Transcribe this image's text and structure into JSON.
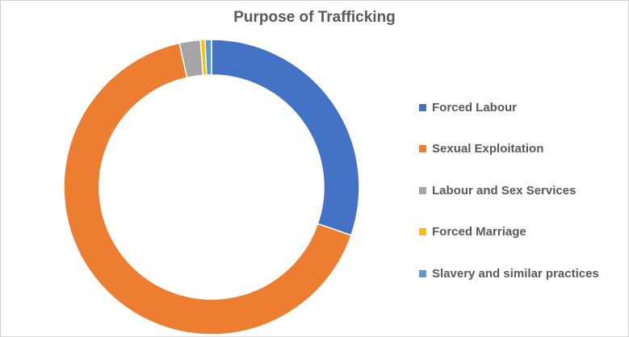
{
  "chart_data": {
    "type": "pie",
    "variant": "doughnut",
    "title": "Purpose of Trafficking",
    "legend_position": "right",
    "series": [
      {
        "name": "Forced Labour",
        "value": 30.3,
        "color": "#4472C4"
      },
      {
        "name": "Sexual Exploitation",
        "value": 66.2,
        "color": "#ED7D31"
      },
      {
        "name": "Labour and Sex Services",
        "value": 2.3,
        "color": "#A5A5A5"
      },
      {
        "name": "Forced Marriage",
        "value": 0.5,
        "color": "#FFC000"
      },
      {
        "name": "Slavery and similar practices",
        "value": 0.7,
        "color": "#5B9BD5"
      }
    ]
  }
}
